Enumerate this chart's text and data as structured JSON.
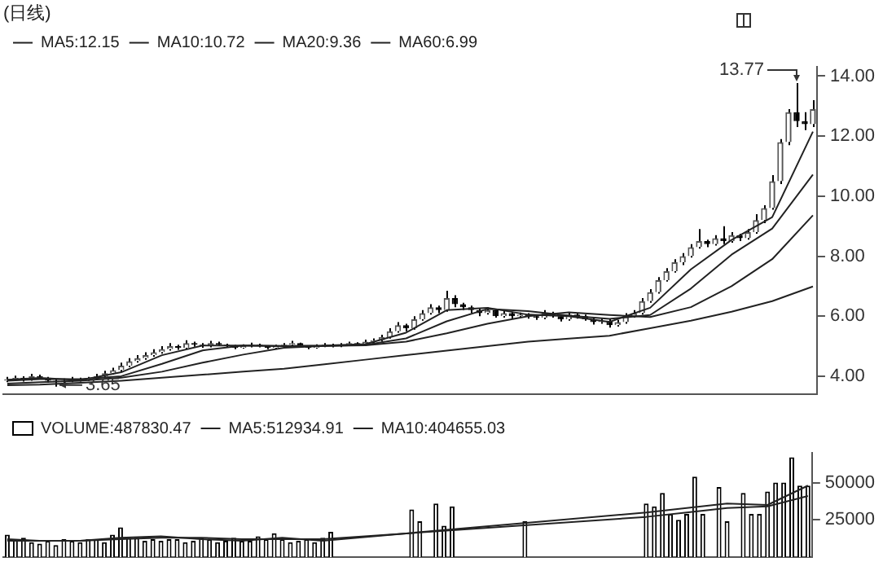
{
  "chart_data": [
    {
      "type": "candlestick",
      "title": "(日线)",
      "categories": [
        null,
        null,
        null,
        null,
        null,
        null,
        null,
        null,
        null,
        null,
        null,
        null,
        null,
        null,
        null,
        null,
        null,
        null,
        null,
        null,
        null,
        null,
        null,
        null,
        null,
        null,
        null,
        null,
        null,
        null,
        null,
        null,
        null,
        null,
        null,
        null,
        null,
        null,
        null,
        null,
        null,
        null,
        null,
        null,
        null,
        null,
        null,
        null,
        null,
        null,
        null,
        null,
        null,
        null,
        null,
        null,
        null,
        null,
        null,
        null,
        null,
        null,
        null,
        null,
        null,
        null,
        null,
        null,
        null,
        null,
        null,
        null,
        null,
        null,
        null,
        null,
        null,
        null,
        null,
        null,
        null,
        null,
        null,
        null,
        null,
        null,
        null,
        null,
        null,
        null,
        null,
        null,
        null,
        null,
        null,
        null,
        null,
        null,
        null,
        null
      ],
      "ohlc": [
        [
          3.85,
          3.98,
          3.8,
          3.9
        ],
        [
          3.9,
          4.02,
          3.85,
          3.95
        ],
        [
          3.95,
          4.0,
          3.82,
          3.88
        ],
        [
          3.88,
          4.08,
          3.85,
          4.0
        ],
        [
          4.0,
          4.05,
          3.9,
          3.95
        ],
        [
          3.95,
          3.98,
          3.78,
          3.85
        ],
        [
          3.85,
          3.9,
          3.65,
          3.8
        ],
        [
          3.8,
          3.92,
          3.75,
          3.85
        ],
        [
          3.85,
          3.98,
          3.8,
          3.9
        ],
        [
          3.9,
          3.95,
          3.82,
          3.88
        ],
        [
          3.88,
          3.98,
          3.84,
          3.92
        ],
        [
          3.92,
          4.08,
          3.88,
          4.0
        ],
        [
          4.0,
          4.18,
          3.95,
          4.1
        ],
        [
          4.1,
          4.28,
          4.05,
          4.2
        ],
        [
          4.2,
          4.45,
          4.15,
          4.35
        ],
        [
          4.35,
          4.6,
          4.3,
          4.5
        ],
        [
          4.5,
          4.7,
          4.45,
          4.6
        ],
        [
          4.6,
          4.8,
          4.55,
          4.7
        ],
        [
          4.7,
          4.9,
          4.65,
          4.8
        ],
        [
          4.8,
          5.0,
          4.75,
          4.9
        ],
        [
          4.9,
          5.1,
          4.85,
          5.0
        ],
        [
          5.0,
          5.05,
          4.88,
          4.95
        ],
        [
          4.95,
          5.2,
          4.9,
          5.1
        ],
        [
          5.1,
          5.15,
          4.98,
          5.05
        ],
        [
          5.05,
          5.1,
          4.95,
          5.0
        ],
        [
          5.0,
          5.18,
          4.96,
          5.1
        ],
        [
          5.1,
          5.15,
          5.0,
          5.05
        ],
        [
          5.05,
          5.08,
          4.95,
          5.0
        ],
        [
          5.0,
          5.04,
          4.9,
          4.95
        ],
        [
          4.95,
          5.06,
          4.92,
          5.0
        ],
        [
          5.0,
          5.12,
          4.96,
          5.05
        ],
        [
          5.05,
          5.08,
          4.96,
          5.0
        ],
        [
          5.0,
          5.03,
          4.9,
          4.95
        ],
        [
          4.95,
          5.05,
          4.92,
          5.0
        ],
        [
          5.0,
          5.1,
          4.97,
          5.05
        ],
        [
          5.05,
          5.18,
          5.02,
          5.1
        ],
        [
          5.1,
          5.12,
          4.96,
          5.0
        ],
        [
          5.0,
          5.03,
          4.9,
          4.95
        ],
        [
          4.95,
          5.06,
          4.92,
          5.0
        ],
        [
          5.0,
          5.1,
          4.97,
          5.05
        ],
        [
          5.05,
          5.08,
          4.96,
          5.0
        ],
        [
          5.0,
          5.1,
          4.97,
          5.05
        ],
        [
          5.05,
          5.15,
          5.02,
          5.1
        ],
        [
          5.1,
          5.13,
          5.0,
          5.05
        ],
        [
          5.05,
          5.22,
          5.02,
          5.15
        ],
        [
          5.15,
          5.26,
          5.1,
          5.2
        ],
        [
          5.2,
          5.38,
          5.15,
          5.3
        ],
        [
          5.3,
          5.6,
          5.25,
          5.5
        ],
        [
          5.5,
          5.8,
          5.45,
          5.7
        ],
        [
          5.7,
          5.75,
          5.5,
          5.6
        ],
        [
          5.6,
          6.0,
          5.55,
          5.9
        ],
        [
          5.9,
          6.2,
          5.85,
          6.1
        ],
        [
          6.1,
          6.4,
          6.05,
          6.3
        ],
        [
          6.3,
          6.35,
          6.1,
          6.2
        ],
        [
          6.2,
          6.85,
          6.15,
          6.6
        ],
        [
          6.6,
          6.7,
          6.3,
          6.4
        ],
        [
          6.4,
          6.45,
          6.2,
          6.3
        ],
        [
          6.3,
          6.35,
          6.1,
          6.2
        ],
        [
          6.2,
          6.25,
          6.0,
          6.1
        ],
        [
          6.1,
          6.3,
          6.05,
          6.2
        ],
        [
          6.2,
          6.25,
          5.95,
          6.0
        ],
        [
          6.0,
          6.2,
          5.95,
          6.1
        ],
        [
          6.1,
          6.15,
          5.92,
          6.0
        ],
        [
          6.0,
          6.12,
          5.95,
          6.05
        ],
        [
          6.05,
          6.1,
          5.92,
          6.0
        ],
        [
          6.0,
          6.05,
          5.88,
          5.95
        ],
        [
          5.95,
          6.2,
          5.9,
          6.1
        ],
        [
          6.1,
          6.15,
          5.95,
          6.0
        ],
        [
          6.0,
          6.05,
          5.82,
          5.9
        ],
        [
          5.9,
          6.12,
          5.85,
          6.05
        ],
        [
          6.05,
          6.1,
          5.92,
          6.0
        ],
        [
          6.0,
          6.05,
          5.85,
          5.9
        ],
        [
          5.9,
          5.95,
          5.72,
          5.8
        ],
        [
          5.8,
          5.92,
          5.75,
          5.85
        ],
        [
          5.85,
          5.9,
          5.62,
          5.7
        ],
        [
          5.7,
          5.88,
          5.65,
          5.8
        ],
        [
          5.8,
          6.1,
          5.75,
          6.0
        ],
        [
          6.0,
          6.2,
          5.95,
          6.1
        ],
        [
          6.1,
          6.6,
          6.05,
          6.5
        ],
        [
          6.5,
          6.9,
          6.45,
          6.8
        ],
        [
          6.8,
          7.3,
          6.75,
          7.2
        ],
        [
          7.2,
          7.6,
          7.15,
          7.5
        ],
        [
          7.5,
          7.9,
          7.45,
          7.8
        ],
        [
          7.8,
          8.1,
          7.7,
          8.0
        ],
        [
          8.0,
          8.4,
          7.95,
          8.3
        ],
        [
          8.3,
          8.9,
          8.25,
          8.5
        ],
        [
          8.5,
          8.55,
          8.3,
          8.4
        ],
        [
          8.4,
          8.7,
          8.35,
          8.6
        ],
        [
          8.6,
          9.0,
          8.4,
          8.5
        ],
        [
          8.5,
          8.8,
          8.45,
          8.7
        ],
        [
          8.7,
          8.75,
          8.5,
          8.6
        ],
        [
          8.6,
          8.9,
          8.55,
          8.8
        ],
        [
          8.8,
          9.4,
          8.75,
          9.2
        ],
        [
          9.2,
          9.7,
          9.1,
          9.6
        ],
        [
          9.6,
          10.7,
          9.55,
          10.5
        ],
        [
          10.5,
          11.9,
          10.4,
          11.8
        ],
        [
          11.8,
          12.9,
          11.7,
          12.8
        ],
        [
          12.8,
          13.77,
          12.3,
          12.5
        ],
        [
          12.5,
          12.8,
          12.2,
          12.4
        ],
        [
          12.4,
          13.2,
          12.3,
          12.9
        ]
      ],
      "series": [
        {
          "type": "line",
          "name": "MA5:12.15",
          "color": "#222222",
          "values": [
            3.88,
            null,
            null,
            null,
            3.94,
            null,
            null,
            null,
            null,
            3.87,
            null,
            null,
            null,
            null,
            4.13,
            null,
            null,
            null,
            null,
            4.7,
            null,
            null,
            null,
            null,
            5.02,
            null,
            null,
            null,
            null,
            5.02,
            null,
            null,
            null,
            null,
            5.0,
            null,
            null,
            null,
            null,
            5.02,
            null,
            null,
            null,
            null,
            5.07,
            null,
            null,
            null,
            null,
            5.45,
            null,
            null,
            null,
            null,
            6.2,
            null,
            null,
            null,
            null,
            6.28,
            null,
            null,
            null,
            null,
            6.05,
            null,
            null,
            null,
            null,
            6.0,
            null,
            null,
            null,
            null,
            5.81,
            null,
            null,
            null,
            null,
            6.28,
            null,
            null,
            null,
            null,
            7.56,
            null,
            null,
            null,
            null,
            8.54,
            null,
            null,
            null,
            null,
            9.3,
            null,
            null,
            null,
            null,
            12.15
          ]
        },
        {
          "type": "line",
          "name": "MA10:10.72",
          "color": "#222222",
          "values": [
            3.85,
            null,
            null,
            null,
            3.9,
            null,
            null,
            null,
            null,
            3.9,
            null,
            null,
            null,
            null,
            4.0,
            null,
            null,
            null,
            null,
            4.41,
            null,
            null,
            null,
            null,
            4.86,
            null,
            null,
            null,
            null,
            5.02,
            null,
            null,
            null,
            null,
            5.01,
            null,
            null,
            null,
            null,
            5.01,
            null,
            null,
            null,
            null,
            5.04,
            null,
            null,
            null,
            null,
            5.26,
            null,
            null,
            null,
            null,
            5.83,
            null,
            null,
            null,
            null,
            6.24,
            null,
            null,
            null,
            null,
            6.17,
            null,
            null,
            null,
            null,
            6.02,
            null,
            null,
            null,
            null,
            5.91,
            null,
            null,
            null,
            null,
            6.04,
            null,
            null,
            null,
            null,
            6.92,
            null,
            null,
            null,
            null,
            8.05,
            null,
            null,
            null,
            null,
            8.92,
            null,
            null,
            null,
            null,
            10.72
          ]
        },
        {
          "type": "line",
          "name": "MA20:9.36",
          "color": "#222222",
          "values": [
            3.75,
            null,
            null,
            null,
            3.8,
            null,
            null,
            null,
            null,
            3.85,
            null,
            null,
            null,
            null,
            3.95,
            null,
            null,
            null,
            null,
            4.15,
            null,
            null,
            null,
            null,
            4.45,
            null,
            null,
            null,
            null,
            4.72,
            null,
            null,
            null,
            null,
            4.95,
            null,
            null,
            null,
            null,
            5.01,
            null,
            null,
            null,
            null,
            5.03,
            null,
            null,
            null,
            null,
            5.15,
            null,
            null,
            null,
            null,
            5.43,
            null,
            null,
            null,
            null,
            5.75,
            null,
            null,
            null,
            null,
            6.0,
            null,
            null,
            null,
            null,
            6.13,
            null,
            null,
            null,
            null,
            6.04,
            null,
            null,
            null,
            null,
            5.97,
            null,
            null,
            null,
            null,
            6.3,
            null,
            null,
            null,
            null,
            7.0,
            null,
            null,
            null,
            null,
            7.9,
            null,
            null,
            null,
            null,
            9.36
          ]
        },
        {
          "type": "line",
          "name": "MA60:6.99",
          "color": "#222222",
          "values": [
            3.7,
            null,
            null,
            null,
            3.72,
            null,
            null,
            null,
            null,
            3.78,
            null,
            null,
            null,
            null,
            3.85,
            null,
            null,
            null,
            null,
            3.95,
            null,
            null,
            null,
            null,
            4.05,
            null,
            null,
            null,
            null,
            4.15,
            null,
            null,
            null,
            null,
            4.25,
            null,
            null,
            null,
            null,
            4.4,
            null,
            null,
            null,
            null,
            4.55,
            null,
            null,
            null,
            null,
            4.7,
            null,
            null,
            null,
            null,
            4.85,
            null,
            null,
            null,
            null,
            5.0,
            null,
            null,
            null,
            null,
            5.15,
            null,
            null,
            null,
            null,
            5.25,
            null,
            null,
            null,
            null,
            5.35,
            null,
            null,
            null,
            null,
            5.6,
            null,
            null,
            null,
            null,
            5.85,
            null,
            null,
            null,
            null,
            6.15,
            null,
            null,
            null,
            null,
            6.5,
            null,
            null,
            null,
            null,
            6.99
          ]
        }
      ],
      "ylim": [
        3.4,
        14.3
      ],
      "yticks": [
        {
          "value": 4,
          "label": "4.00"
        },
        {
          "value": 6,
          "label": "6.00"
        },
        {
          "value": 8,
          "label": "8.00"
        },
        {
          "value": 10,
          "label": "10.00"
        },
        {
          "value": 12,
          "label": "12.00"
        },
        {
          "value": 14,
          "label": "14.00"
        }
      ],
      "annotations": [
        "13.77",
        "3.65"
      ],
      "legend": "top left",
      "tick_labels": "y"
    },
    {
      "type": "bar",
      "categories": [
        null,
        null,
        null,
        null,
        null,
        null,
        null,
        null,
        null,
        null,
        null,
        null,
        null,
        null,
        null,
        null,
        null,
        null,
        null,
        null,
        null,
        null,
        null,
        null,
        null,
        null,
        null,
        null,
        null,
        null,
        null,
        null,
        null,
        null,
        null,
        null,
        null,
        null,
        null,
        null,
        null,
        null,
        null,
        null,
        null,
        null,
        null,
        null,
        null,
        null,
        null,
        null,
        null,
        null,
        null,
        null,
        null,
        null,
        null,
        null,
        null,
        null,
        null,
        null,
        null,
        null,
        null,
        null,
        null,
        null,
        null,
        null,
        null,
        null,
        null,
        null,
        null,
        null,
        null,
        null,
        null,
        null,
        null,
        null,
        null,
        null,
        null,
        null,
        null,
        null,
        null,
        null,
        null,
        null,
        null,
        null,
        null,
        null,
        null,
        null
      ],
      "series": [
        {
          "type": "bar",
          "name": "VOLUME:487830.47",
          "color": "#000000",
          "values": [
            15000,
            12000,
            13000,
            10000,
            9000,
            11000,
            8000,
            12000,
            11000,
            10000,
            12000,
            12000,
            10000,
            15000,
            20000,
            13000,
            13000,
            11000,
            12000,
            11000,
            12000,
            12000,
            10000,
            11000,
            13000,
            12000,
            10000,
            11000,
            13000,
            11000,
            11000,
            14000,
            12000,
            16000,
            12000,
            10000,
            11000,
            12000,
            10000,
            13000,
            17000,
            null,
            null,
            null,
            null,
            null,
            null,
            null,
            null,
            null,
            32000,
            24000,
            null,
            36000,
            21000,
            34000,
            null,
            null,
            null,
            null,
            null,
            null,
            null,
            null,
            24000,
            null,
            null,
            null,
            null,
            null,
            null,
            null,
            null,
            null,
            null,
            null,
            null,
            null,
            null,
            36000,
            34000,
            43000,
            29000,
            25000,
            29000,
            54000,
            29000,
            null,
            47000,
            24000,
            null,
            43000,
            29000,
            29000,
            44000,
            50000,
            50000,
            67000,
            48000,
            48000
          ]
        },
        {
          "type": "line",
          "name": "MA5:512934.91",
          "color": "#222222",
          "values": [
            12000,
            null,
            null,
            null,
            11000,
            null,
            null,
            null,
            null,
            11000,
            null,
            null,
            null,
            null,
            13000,
            null,
            null,
            null,
            null,
            14000,
            null,
            null,
            null,
            null,
            12000,
            null,
            null,
            null,
            null,
            11000,
            null,
            null,
            null,
            null,
            13000,
            null,
            null,
            null,
            null,
            11000,
            null,
            null,
            null,
            null,
            null,
            null,
            null,
            null,
            null,
            null,
            null,
            null,
            null,
            null,
            null,
            null,
            null,
            null,
            null,
            null,
            null,
            null,
            null,
            null,
            null,
            null,
            null,
            null,
            null,
            null,
            null,
            null,
            null,
            null,
            null,
            null,
            null,
            null,
            null,
            30000,
            null,
            null,
            null,
            null,
            33000,
            null,
            null,
            null,
            null,
            36000,
            null,
            null,
            null,
            null,
            35000,
            null,
            null,
            null,
            null,
            48000
          ]
        },
        {
          "type": "line",
          "name": "MA10:404655.03",
          "color": "#222222",
          "values": [
            11000,
            null,
            null,
            null,
            11000,
            null,
            null,
            null,
            null,
            11000,
            null,
            null,
            null,
            null,
            12000,
            null,
            null,
            null,
            null,
            13000,
            null,
            null,
            null,
            null,
            13000,
            null,
            null,
            null,
            null,
            12000,
            null,
            null,
            null,
            null,
            12000,
            null,
            null,
            null,
            null,
            12000,
            null,
            null,
            null,
            null,
            null,
            null,
            null,
            null,
            null,
            null,
            null,
            null,
            null,
            null,
            null,
            null,
            null,
            null,
            null,
            null,
            null,
            null,
            null,
            null,
            null,
            null,
            null,
            null,
            null,
            null,
            null,
            null,
            null,
            null,
            null,
            null,
            null,
            null,
            null,
            27000,
            null,
            null,
            null,
            null,
            30000,
            null,
            null,
            null,
            null,
            33000,
            null,
            null,
            null,
            null,
            34000,
            null,
            null,
            null,
            null,
            41000
          ]
        }
      ],
      "ylim": [
        0,
        70000
      ],
      "yticks": [
        25000,
        50000
      ],
      "legend": "top left",
      "tick_labels": "y"
    }
  ]
}
